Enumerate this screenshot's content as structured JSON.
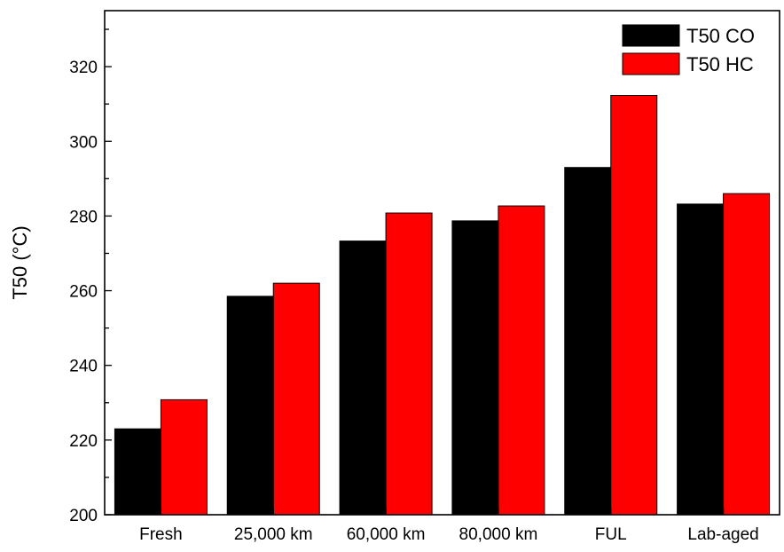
{
  "chart_data": {
    "type": "bar",
    "categories": [
      "Fresh",
      "25,000 km",
      "60,000 km",
      "80,000 km",
      "FUL",
      "Lab-aged"
    ],
    "series": [
      {
        "name": "T50 CO",
        "color": "#000000",
        "values": [
          223,
          258.5,
          273.3,
          278.7,
          293,
          283.2
        ]
      },
      {
        "name": "T50 HC",
        "color": "#ff0000",
        "values": [
          230.8,
          262,
          280.8,
          282.7,
          312.3,
          286
        ]
      }
    ],
    "title": "",
    "xlabel": "",
    "ylabel": "T50 (°C)",
    "ylim": [
      200,
      335
    ],
    "yticks": [
      200,
      220,
      240,
      260,
      280,
      300,
      320
    ],
    "y_minor_step": 10,
    "grid": false,
    "legend_position": "top-right"
  }
}
